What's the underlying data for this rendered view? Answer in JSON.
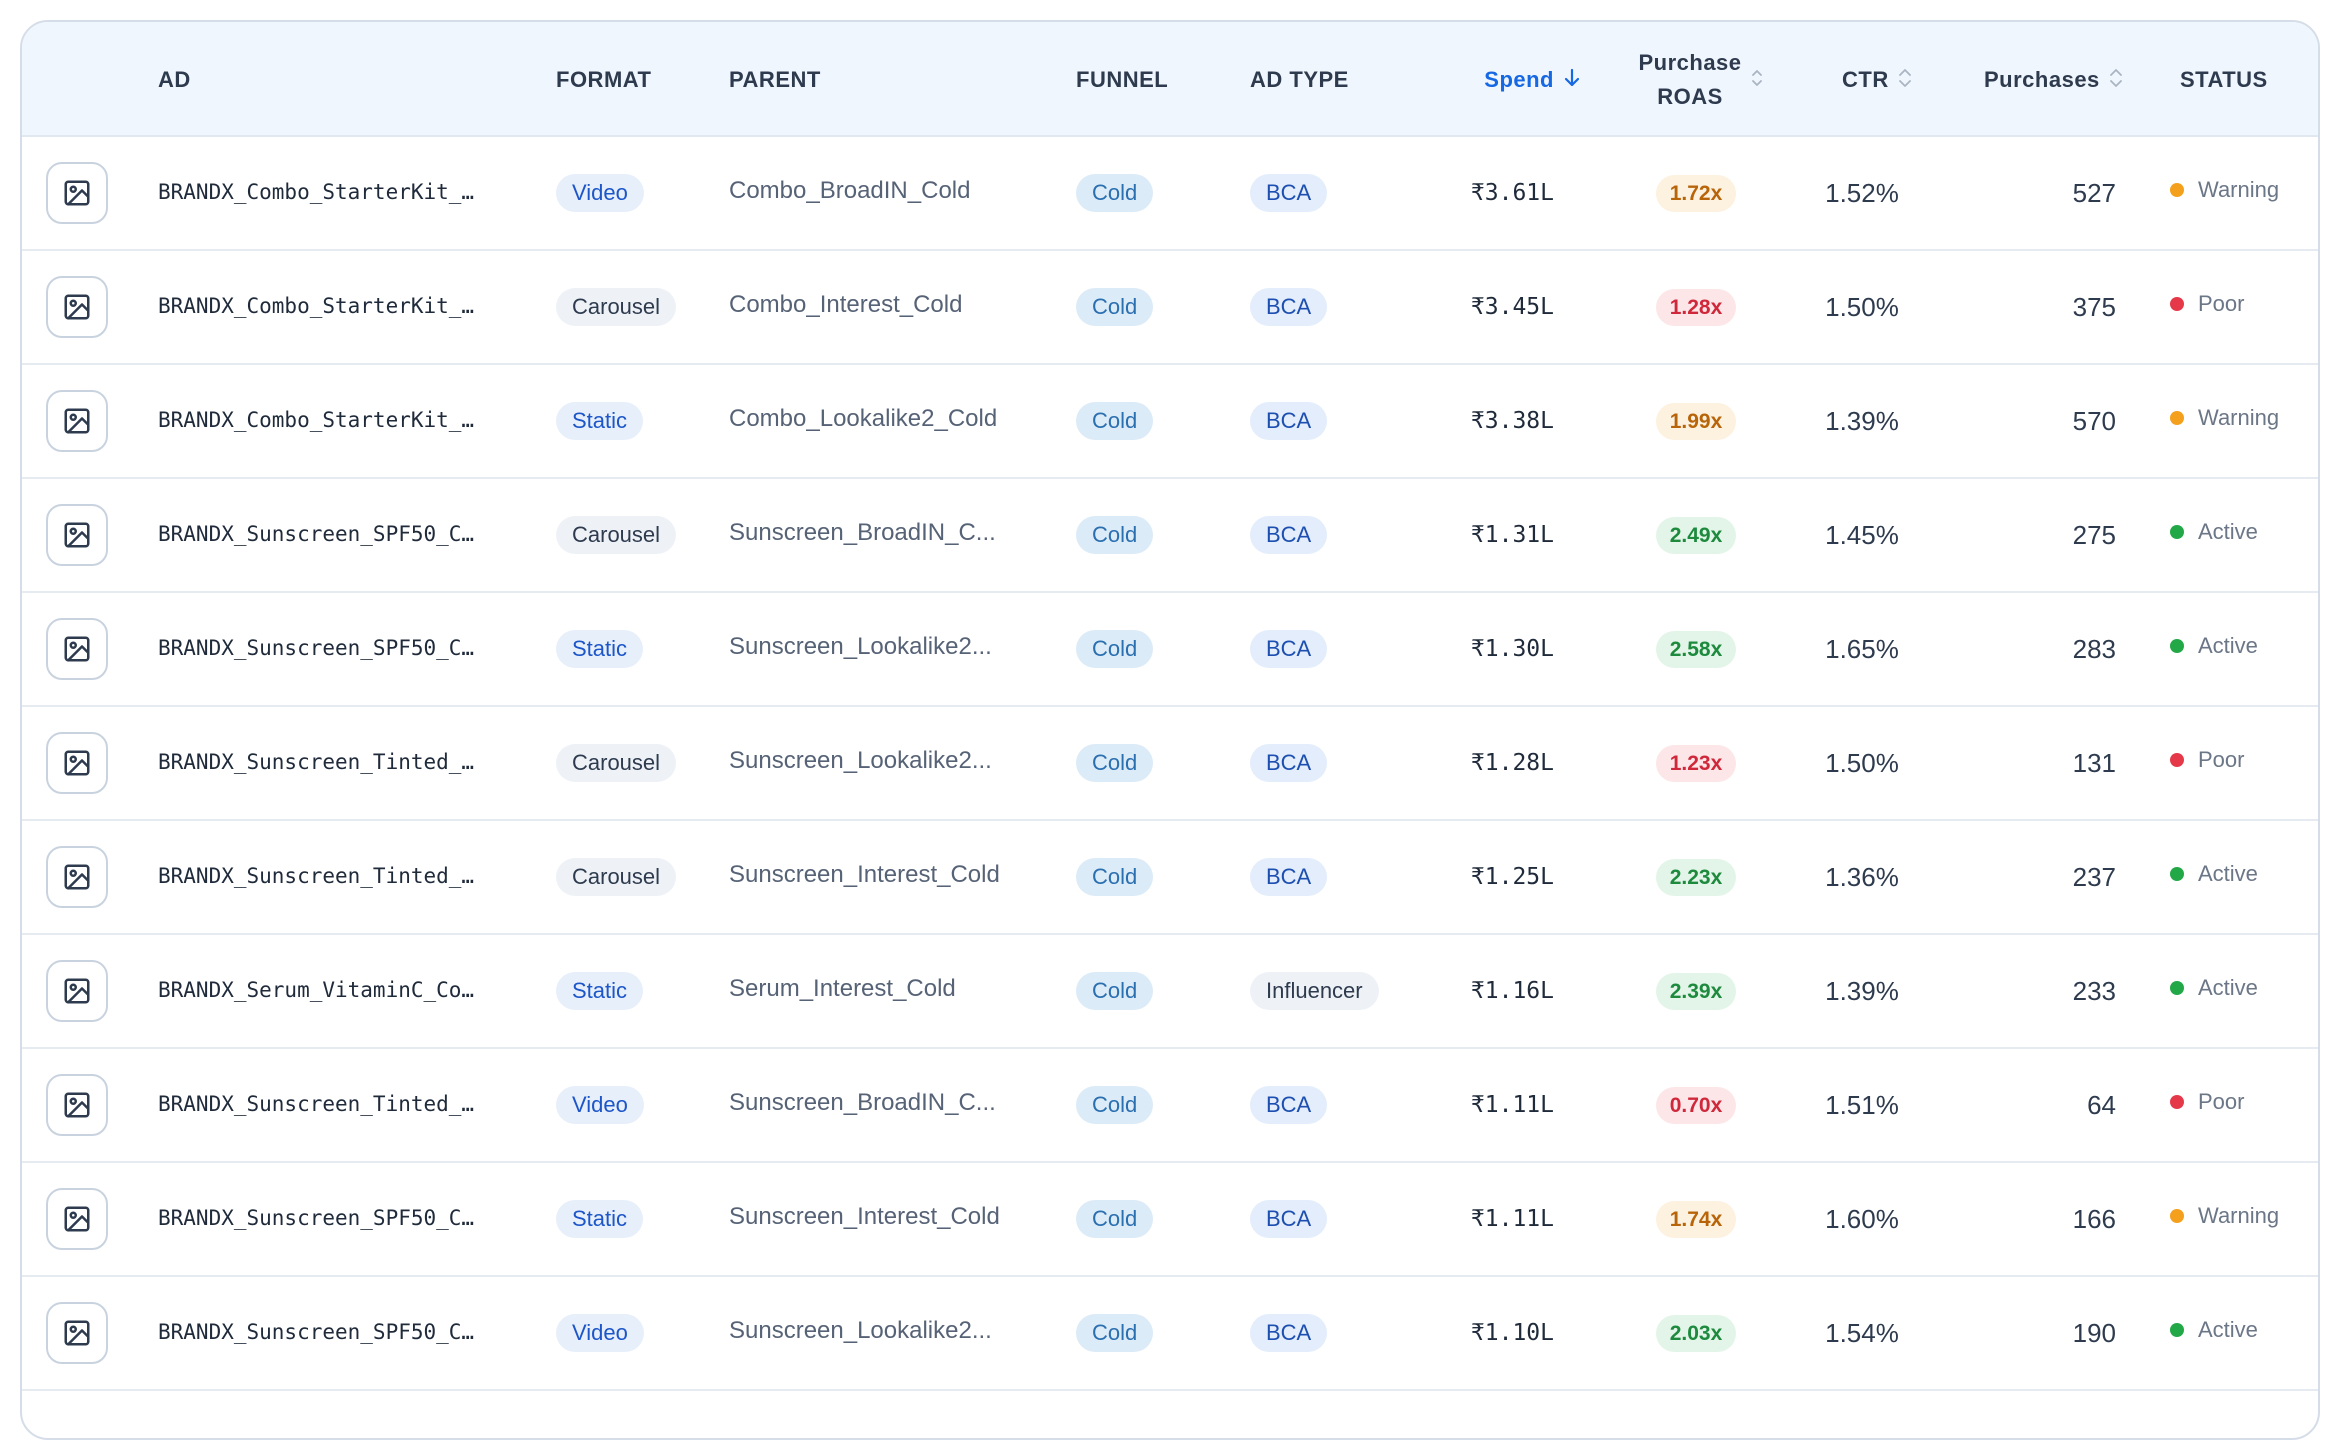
{
  "columns": {
    "ad": "AD",
    "format": "FORMAT",
    "parent": "PARENT",
    "funnel": "FUNNEL",
    "ad_type": "AD TYPE",
    "spend": "Spend",
    "roas_line1": "Purchase",
    "roas_line2": "ROAS",
    "ctr": "CTR",
    "purchases": "Purchases",
    "status": "STATUS"
  },
  "sort": {
    "column": "Spend",
    "direction": "descending"
  },
  "status_colors": {
    "Warning": "#f4a01c",
    "Poor": "#e5394a",
    "Active": "#22a846"
  },
  "rows": [
    {
      "ad": "BRANDX_Combo_StarterKit_…",
      "format": "Video",
      "parent": "Combo_BroadIN_Cold",
      "funnel": "Cold",
      "ad_type": "BCA",
      "spend": "₹3.61L",
      "roas": "1.72x",
      "roas_level": "warn",
      "ctr": "1.52%",
      "purchases": "527",
      "status": "Warning"
    },
    {
      "ad": "BRANDX_Combo_StarterKit_…",
      "format": "Carousel",
      "parent": "Combo_Interest_Cold",
      "funnel": "Cold",
      "ad_type": "BCA",
      "spend": "₹3.45L",
      "roas": "1.28x",
      "roas_level": "poor",
      "ctr": "1.50%",
      "purchases": "375",
      "status": "Poor"
    },
    {
      "ad": "BRANDX_Combo_StarterKit_…",
      "format": "Static",
      "parent": "Combo_Lookalike2_Cold",
      "funnel": "Cold",
      "ad_type": "BCA",
      "spend": "₹3.38L",
      "roas": "1.99x",
      "roas_level": "warn",
      "ctr": "1.39%",
      "purchases": "570",
      "status": "Warning"
    },
    {
      "ad": "BRANDX_Sunscreen_SPF50_C…",
      "format": "Carousel",
      "parent": "Sunscreen_BroadIN_C...",
      "funnel": "Cold",
      "ad_type": "BCA",
      "spend": "₹1.31L",
      "roas": "2.49x",
      "roas_level": "good",
      "ctr": "1.45%",
      "purchases": "275",
      "status": "Active"
    },
    {
      "ad": "BRANDX_Sunscreen_SPF50_C…",
      "format": "Static",
      "parent": "Sunscreen_Lookalike2...",
      "funnel": "Cold",
      "ad_type": "BCA",
      "spend": "₹1.30L",
      "roas": "2.58x",
      "roas_level": "good",
      "ctr": "1.65%",
      "purchases": "283",
      "status": "Active"
    },
    {
      "ad": "BRANDX_Sunscreen_Tinted_…",
      "format": "Carousel",
      "parent": "Sunscreen_Lookalike2...",
      "funnel": "Cold",
      "ad_type": "BCA",
      "spend": "₹1.28L",
      "roas": "1.23x",
      "roas_level": "poor",
      "ctr": "1.50%",
      "purchases": "131",
      "status": "Poor"
    },
    {
      "ad": "BRANDX_Sunscreen_Tinted_…",
      "format": "Carousel",
      "parent": "Sunscreen_Interest_Cold",
      "funnel": "Cold",
      "ad_type": "BCA",
      "spend": "₹1.25L",
      "roas": "2.23x",
      "roas_level": "good",
      "ctr": "1.36%",
      "purchases": "237",
      "status": "Active"
    },
    {
      "ad": "BRANDX_Serum_VitaminC_Co…",
      "format": "Static",
      "parent": "Serum_Interest_Cold",
      "funnel": "Cold",
      "ad_type": "Influencer",
      "spend": "₹1.16L",
      "roas": "2.39x",
      "roas_level": "good",
      "ctr": "1.39%",
      "purchases": "233",
      "status": "Active"
    },
    {
      "ad": "BRANDX_Sunscreen_Tinted_…",
      "format": "Video",
      "parent": "Sunscreen_BroadIN_C...",
      "funnel": "Cold",
      "ad_type": "BCA",
      "spend": "₹1.11L",
      "roas": "0.70x",
      "roas_level": "poor",
      "ctr": "1.51%",
      "purchases": "64",
      "status": "Poor"
    },
    {
      "ad": "BRANDX_Sunscreen_SPF50_C…",
      "format": "Static",
      "parent": "Sunscreen_Interest_Cold",
      "funnel": "Cold",
      "ad_type": "BCA",
      "spend": "₹1.11L",
      "roas": "1.74x",
      "roas_level": "warn",
      "ctr": "1.60%",
      "purchases": "166",
      "status": "Warning"
    },
    {
      "ad": "BRANDX_Sunscreen_SPF50_C…",
      "format": "Video",
      "parent": "Sunscreen_Lookalike2...",
      "funnel": "Cold",
      "ad_type": "BCA",
      "spend": "₹1.10L",
      "roas": "2.03x",
      "roas_level": "good",
      "ctr": "1.54%",
      "purchases": "190",
      "status": "Active"
    }
  ]
}
